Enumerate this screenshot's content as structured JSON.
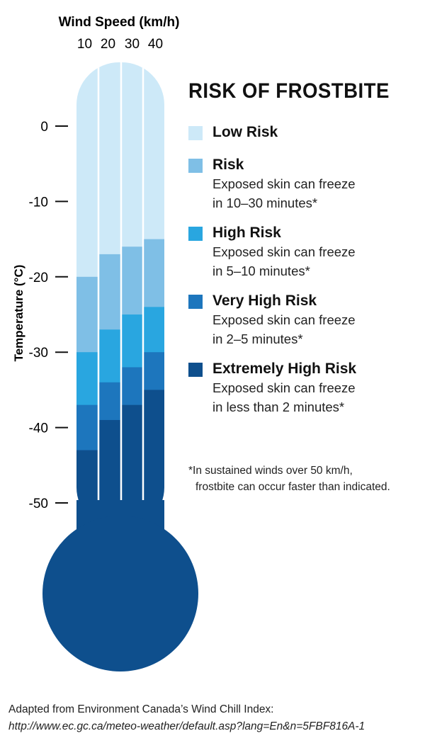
{
  "chart_data": {
    "type": "heatmap",
    "title": "RISK OF FROSTBITE",
    "xlabel": "Wind Speed (km/h)",
    "ylabel": "Temperature (°C)",
    "x": [
      "10",
      "20",
      "30",
      "40"
    ],
    "yticks": [
      "0",
      "-10",
      "-20",
      "-30",
      "-40",
      "-50"
    ],
    "ylim": [
      -50,
      0
    ],
    "columns": [
      {
        "wind_speed": 10,
        "bands": [
          {
            "from": 0,
            "to": -20,
            "level": "low"
          },
          {
            "from": -20,
            "to": -30,
            "level": "risk"
          },
          {
            "from": -30,
            "to": -37,
            "level": "high"
          },
          {
            "from": -37,
            "to": -43,
            "level": "very_high"
          },
          {
            "from": -43,
            "to": -50,
            "level": "extreme"
          }
        ]
      },
      {
        "wind_speed": 20,
        "bands": [
          {
            "from": 0,
            "to": -17,
            "level": "low"
          },
          {
            "from": -17,
            "to": -27,
            "level": "risk"
          },
          {
            "from": -27,
            "to": -34,
            "level": "high"
          },
          {
            "from": -34,
            "to": -39,
            "level": "very_high"
          },
          {
            "from": -39,
            "to": -50,
            "level": "extreme"
          }
        ]
      },
      {
        "wind_speed": 30,
        "bands": [
          {
            "from": 0,
            "to": -16,
            "level": "low"
          },
          {
            "from": -16,
            "to": -25,
            "level": "risk"
          },
          {
            "from": -25,
            "to": -32,
            "level": "high"
          },
          {
            "from": -32,
            "to": -37,
            "level": "very_high"
          },
          {
            "from": -37,
            "to": -50,
            "level": "extreme"
          }
        ]
      },
      {
        "wind_speed": 40,
        "bands": [
          {
            "from": 0,
            "to": -15,
            "level": "low"
          },
          {
            "from": -15,
            "to": -24,
            "level": "risk"
          },
          {
            "from": -24,
            "to": -30,
            "level": "high"
          },
          {
            "from": -30,
            "to": -35,
            "level": "very_high"
          },
          {
            "from": -35,
            "to": -50,
            "level": "extreme"
          }
        ]
      }
    ],
    "colors": {
      "low": "#cde9f8",
      "risk": "#7fbfe6",
      "high": "#29a6e0",
      "very_high": "#1d76bd",
      "extreme": "#0e4f8d"
    }
  },
  "legend": {
    "title": "RISK OF FROSTBITE",
    "items": [
      {
        "level": "low",
        "name": "Low Risk",
        "desc1": "",
        "desc2": ""
      },
      {
        "level": "risk",
        "name": "Risk",
        "desc1": "Exposed skin can freeze",
        "desc2": "in 10–30 minutes*"
      },
      {
        "level": "high",
        "name": "High Risk",
        "desc1": "Exposed skin can freeze",
        "desc2": "in 5–10 minutes*"
      },
      {
        "level": "very_high",
        "name": "Very High Risk",
        "desc1": "Exposed skin can freeze",
        "desc2": "in 2–5 minutes*"
      },
      {
        "level": "extreme",
        "name": "Extremely High Risk",
        "desc1": "Exposed skin can freeze",
        "desc2": "in less than 2 minutes*"
      }
    ]
  },
  "note": {
    "line1": "*In sustained winds over 50 km/h,",
    "line2": "frostbite can occur faster than indicated."
  },
  "source": {
    "line1": "Adapted from Environment Canada’s Wind Chill Index:",
    "url": "http://www.ec.gc.ca/meteo-weather/default.asp?lang=En&n=5FBF816A-1"
  }
}
